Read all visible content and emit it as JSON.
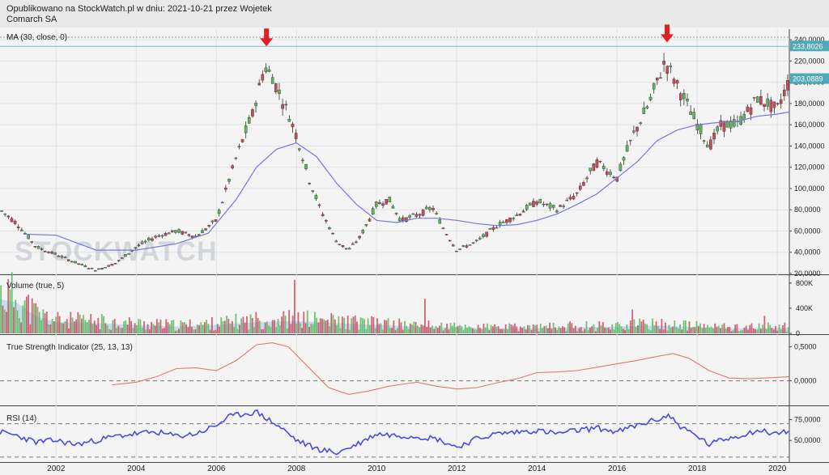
{
  "header": {
    "line1": "Opublikowano na StockWatch.pl w dniu: 2021-10-21 przez Wojetek",
    "line2": "Comarch SA"
  },
  "watermark": "STOCKWATCH",
  "colors": {
    "up": "#5cb85c",
    "down": "#c94a5c",
    "ma": "#7777dd",
    "tsi": "#e07a6e",
    "rsi": "#4a4ae0",
    "arrow": "#e02020",
    "badge": "#4fa9b8",
    "volume_ma": "#aac8ea"
  },
  "chart_data": [
    {
      "type": "candlestick",
      "panel": "price",
      "label": "MA (30, close, 0)",
      "x_range": [
        2000.6,
        2020.3
      ],
      "ylim": [
        20000,
        250000
      ],
      "y_ticks": [
        "20,0000",
        "40,0000",
        "60,0000",
        "80,0000",
        "100,0000",
        "120,0000",
        "140,0000",
        "160,0000",
        "180,0000",
        "200,0000",
        "220,0000",
        "240,0000"
      ],
      "x_ticks": [
        "2002",
        "2004",
        "2006",
        "2008",
        "2010",
        "2012",
        "2014",
        "2016",
        "2018",
        "2020"
      ],
      "last_close": "203,0889",
      "resistance_line": "233,8026",
      "peak_markers": [
        2007.25,
        2017.25
      ],
      "price_path": [
        [
          2000.6,
          80000
        ],
        [
          2001.0,
          68000
        ],
        [
          2001.5,
          45000
        ],
        [
          2002.0,
          38000
        ],
        [
          2002.5,
          30000
        ],
        [
          2003.0,
          23000
        ],
        [
          2003.5,
          30000
        ],
        [
          2004.0,
          45000
        ],
        [
          2004.5,
          55000
        ],
        [
          2005.0,
          60000
        ],
        [
          2005.5,
          55000
        ],
        [
          2006.0,
          70000
        ],
        [
          2006.5,
          130000
        ],
        [
          2006.9,
          170000
        ],
        [
          2007.2,
          215000
        ],
        [
          2007.4,
          205000
        ],
        [
          2007.8,
          170000
        ],
        [
          2008.0,
          150000
        ],
        [
          2008.3,
          110000
        ],
        [
          2008.6,
          80000
        ],
        [
          2009.0,
          50000
        ],
        [
          2009.3,
          42000
        ],
        [
          2009.6,
          55000
        ],
        [
          2010.0,
          85000
        ],
        [
          2010.3,
          90000
        ],
        [
          2010.6,
          70000
        ],
        [
          2011.0,
          75000
        ],
        [
          2011.4,
          82000
        ],
        [
          2011.7,
          60000
        ],
        [
          2012.0,
          42000
        ],
        [
          2012.5,
          50000
        ],
        [
          2013.0,
          65000
        ],
        [
          2013.5,
          75000
        ],
        [
          2014.0,
          88000
        ],
        [
          2014.5,
          80000
        ],
        [
          2015.0,
          95000
        ],
        [
          2015.5,
          125000
        ],
        [
          2016.0,
          110000
        ],
        [
          2016.4,
          150000
        ],
        [
          2016.8,
          180000
        ],
        [
          2017.2,
          220000
        ],
        [
          2017.6,
          190000
        ],
        [
          2018.0,
          160000
        ],
        [
          2018.3,
          140000
        ],
        [
          2018.6,
          160000
        ],
        [
          2019.0,
          160000
        ],
        [
          2019.5,
          185000
        ],
        [
          2020.0,
          175000
        ],
        [
          2020.3,
          203000
        ]
      ],
      "ma30": [
        [
          2001.2,
          57000
        ],
        [
          2002.0,
          56000
        ],
        [
          2003.0,
          42000
        ],
        [
          2004.0,
          42000
        ],
        [
          2005.0,
          48000
        ],
        [
          2005.8,
          58000
        ],
        [
          2006.5,
          90000
        ],
        [
          2007.0,
          120000
        ],
        [
          2007.5,
          137000
        ],
        [
          2008.0,
          143000
        ],
        [
          2008.5,
          130000
        ],
        [
          2009.0,
          105000
        ],
        [
          2009.5,
          85000
        ],
        [
          2010.0,
          70000
        ],
        [
          2010.5,
          68000
        ],
        [
          2011.0,
          72000
        ],
        [
          2011.5,
          72000
        ],
        [
          2012.0,
          70000
        ],
        [
          2012.5,
          67000
        ],
        [
          2013.0,
          65000
        ],
        [
          2013.5,
          66000
        ],
        [
          2014.0,
          70000
        ],
        [
          2014.5,
          76000
        ],
        [
          2015.0,
          85000
        ],
        [
          2015.5,
          95000
        ],
        [
          2016.0,
          110000
        ],
        [
          2016.5,
          125000
        ],
        [
          2017.0,
          145000
        ],
        [
          2017.5,
          155000
        ],
        [
          2018.0,
          160000
        ],
        [
          2018.5,
          162000
        ],
        [
          2019.0,
          163000
        ],
        [
          2019.5,
          168000
        ],
        [
          2020.0,
          170000
        ],
        [
          2020.3,
          172000
        ]
      ]
    },
    {
      "type": "bar",
      "panel": "volume",
      "label": "Volume (true, 5)",
      "ylim": [
        0,
        900000
      ],
      "y_ticks": [
        "0",
        "400K",
        "800K"
      ],
      "profile": [
        [
          2000.6,
          600000
        ],
        [
          2001.0,
          550000
        ],
        [
          2001.5,
          300000
        ],
        [
          2002.0,
          200000
        ],
        [
          2003.0,
          180000
        ],
        [
          2004.0,
          150000
        ],
        [
          2005.0,
          120000
        ],
        [
          2006.0,
          150000
        ],
        [
          2007.0,
          200000
        ],
        [
          2008.0,
          220000
        ],
        [
          2009.0,
          180000
        ],
        [
          2010.0,
          150000
        ],
        [
          2011.0,
          120000
        ],
        [
          2012.0,
          100000
        ],
        [
          2013.0,
          90000
        ],
        [
          2014.0,
          90000
        ],
        [
          2015.0,
          110000
        ],
        [
          2016.0,
          120000
        ],
        [
          2017.0,
          140000
        ],
        [
          2018.0,
          110000
        ],
        [
          2019.0,
          90000
        ],
        [
          2020.3,
          100000
        ]
      ],
      "spikes": [
        [
          2007.95,
          850000
        ],
        [
          2011.2,
          550000
        ],
        [
          2016.4,
          380000
        ],
        [
          2019.7,
          280000
        ]
      ]
    },
    {
      "type": "line",
      "panel": "tsi",
      "label": "True Strength Indicator (25, 13, 13)",
      "ylim": [
        -0.35,
        0.65
      ],
      "y_ticks": [
        "0,0000",
        "0,5000"
      ],
      "series": [
        {
          "values": [
            [
              2003.4,
              -0.06
            ],
            [
              2004.0,
              -0.02
            ],
            [
              2004.5,
              0.06
            ],
            [
              2005.0,
              0.18
            ],
            [
              2005.5,
              0.19
            ],
            [
              2006.0,
              0.15
            ],
            [
              2006.5,
              0.3
            ],
            [
              2007.0,
              0.53
            ],
            [
              2007.4,
              0.56
            ],
            [
              2007.8,
              0.5
            ],
            [
              2008.3,
              0.2
            ],
            [
              2008.8,
              -0.1
            ],
            [
              2009.3,
              -0.2
            ],
            [
              2009.8,
              -0.15
            ],
            [
              2010.3,
              -0.08
            ],
            [
              2011.0,
              -0.02
            ],
            [
              2011.5,
              -0.08
            ],
            [
              2012.0,
              -0.12
            ],
            [
              2012.5,
              -0.1
            ],
            [
              2013.0,
              -0.03
            ],
            [
              2013.5,
              0.03
            ],
            [
              2014.0,
              0.12
            ],
            [
              2014.5,
              0.13
            ],
            [
              2015.0,
              0.15
            ],
            [
              2015.5,
              0.2
            ],
            [
              2016.0,
              0.25
            ],
            [
              2016.5,
              0.3
            ],
            [
              2017.0,
              0.36
            ],
            [
              2017.4,
              0.4
            ],
            [
              2017.8,
              0.33
            ],
            [
              2018.3,
              0.15
            ],
            [
              2018.8,
              0.04
            ],
            [
              2019.3,
              0.03
            ],
            [
              2020.3,
              0.06
            ]
          ]
        }
      ],
      "dashed_levels": [
        "0,0000"
      ]
    },
    {
      "type": "line",
      "panel": "rsi",
      "label": "RSI (14)",
      "ylim": [
        25,
        90
      ],
      "y_ticks": [
        "50,0000",
        "75,0000"
      ],
      "dashed_levels": [
        30,
        70
      ],
      "series": [
        {
          "values": [
            [
              2000.6,
              60
            ],
            [
              2001.0,
              56
            ],
            [
              2001.5,
              48
            ],
            [
              2002.0,
              50
            ],
            [
              2002.5,
              45
            ],
            [
              2003.0,
              50
            ],
            [
              2003.5,
              55
            ],
            [
              2004.0,
              58
            ],
            [
              2004.5,
              60
            ],
            [
              2005.0,
              55
            ],
            [
              2005.5,
              58
            ],
            [
              2006.0,
              68
            ],
            [
              2006.3,
              78
            ],
            [
              2006.7,
              82
            ],
            [
              2007.0,
              84
            ],
            [
              2007.3,
              75
            ],
            [
              2007.7,
              62
            ],
            [
              2008.0,
              50
            ],
            [
              2008.5,
              40
            ],
            [
              2009.0,
              35
            ],
            [
              2009.5,
              45
            ],
            [
              2010.0,
              58
            ],
            [
              2010.5,
              56
            ],
            [
              2011.0,
              55
            ],
            [
              2011.5,
              52
            ],
            [
              2012.0,
              42
            ],
            [
              2012.5,
              52
            ],
            [
              2013.0,
              58
            ],
            [
              2013.5,
              60
            ],
            [
              2014.0,
              62
            ],
            [
              2014.5,
              58
            ],
            [
              2015.0,
              62
            ],
            [
              2015.5,
              65
            ],
            [
              2016.0,
              60
            ],
            [
              2016.5,
              68
            ],
            [
              2017.0,
              75
            ],
            [
              2017.3,
              80
            ],
            [
              2017.6,
              66
            ],
            [
              2018.0,
              55
            ],
            [
              2018.3,
              45
            ],
            [
              2018.7,
              52
            ],
            [
              2019.0,
              55
            ],
            [
              2019.5,
              62
            ],
            [
              2020.0,
              58
            ],
            [
              2020.3,
              62
            ]
          ]
        }
      ]
    }
  ]
}
